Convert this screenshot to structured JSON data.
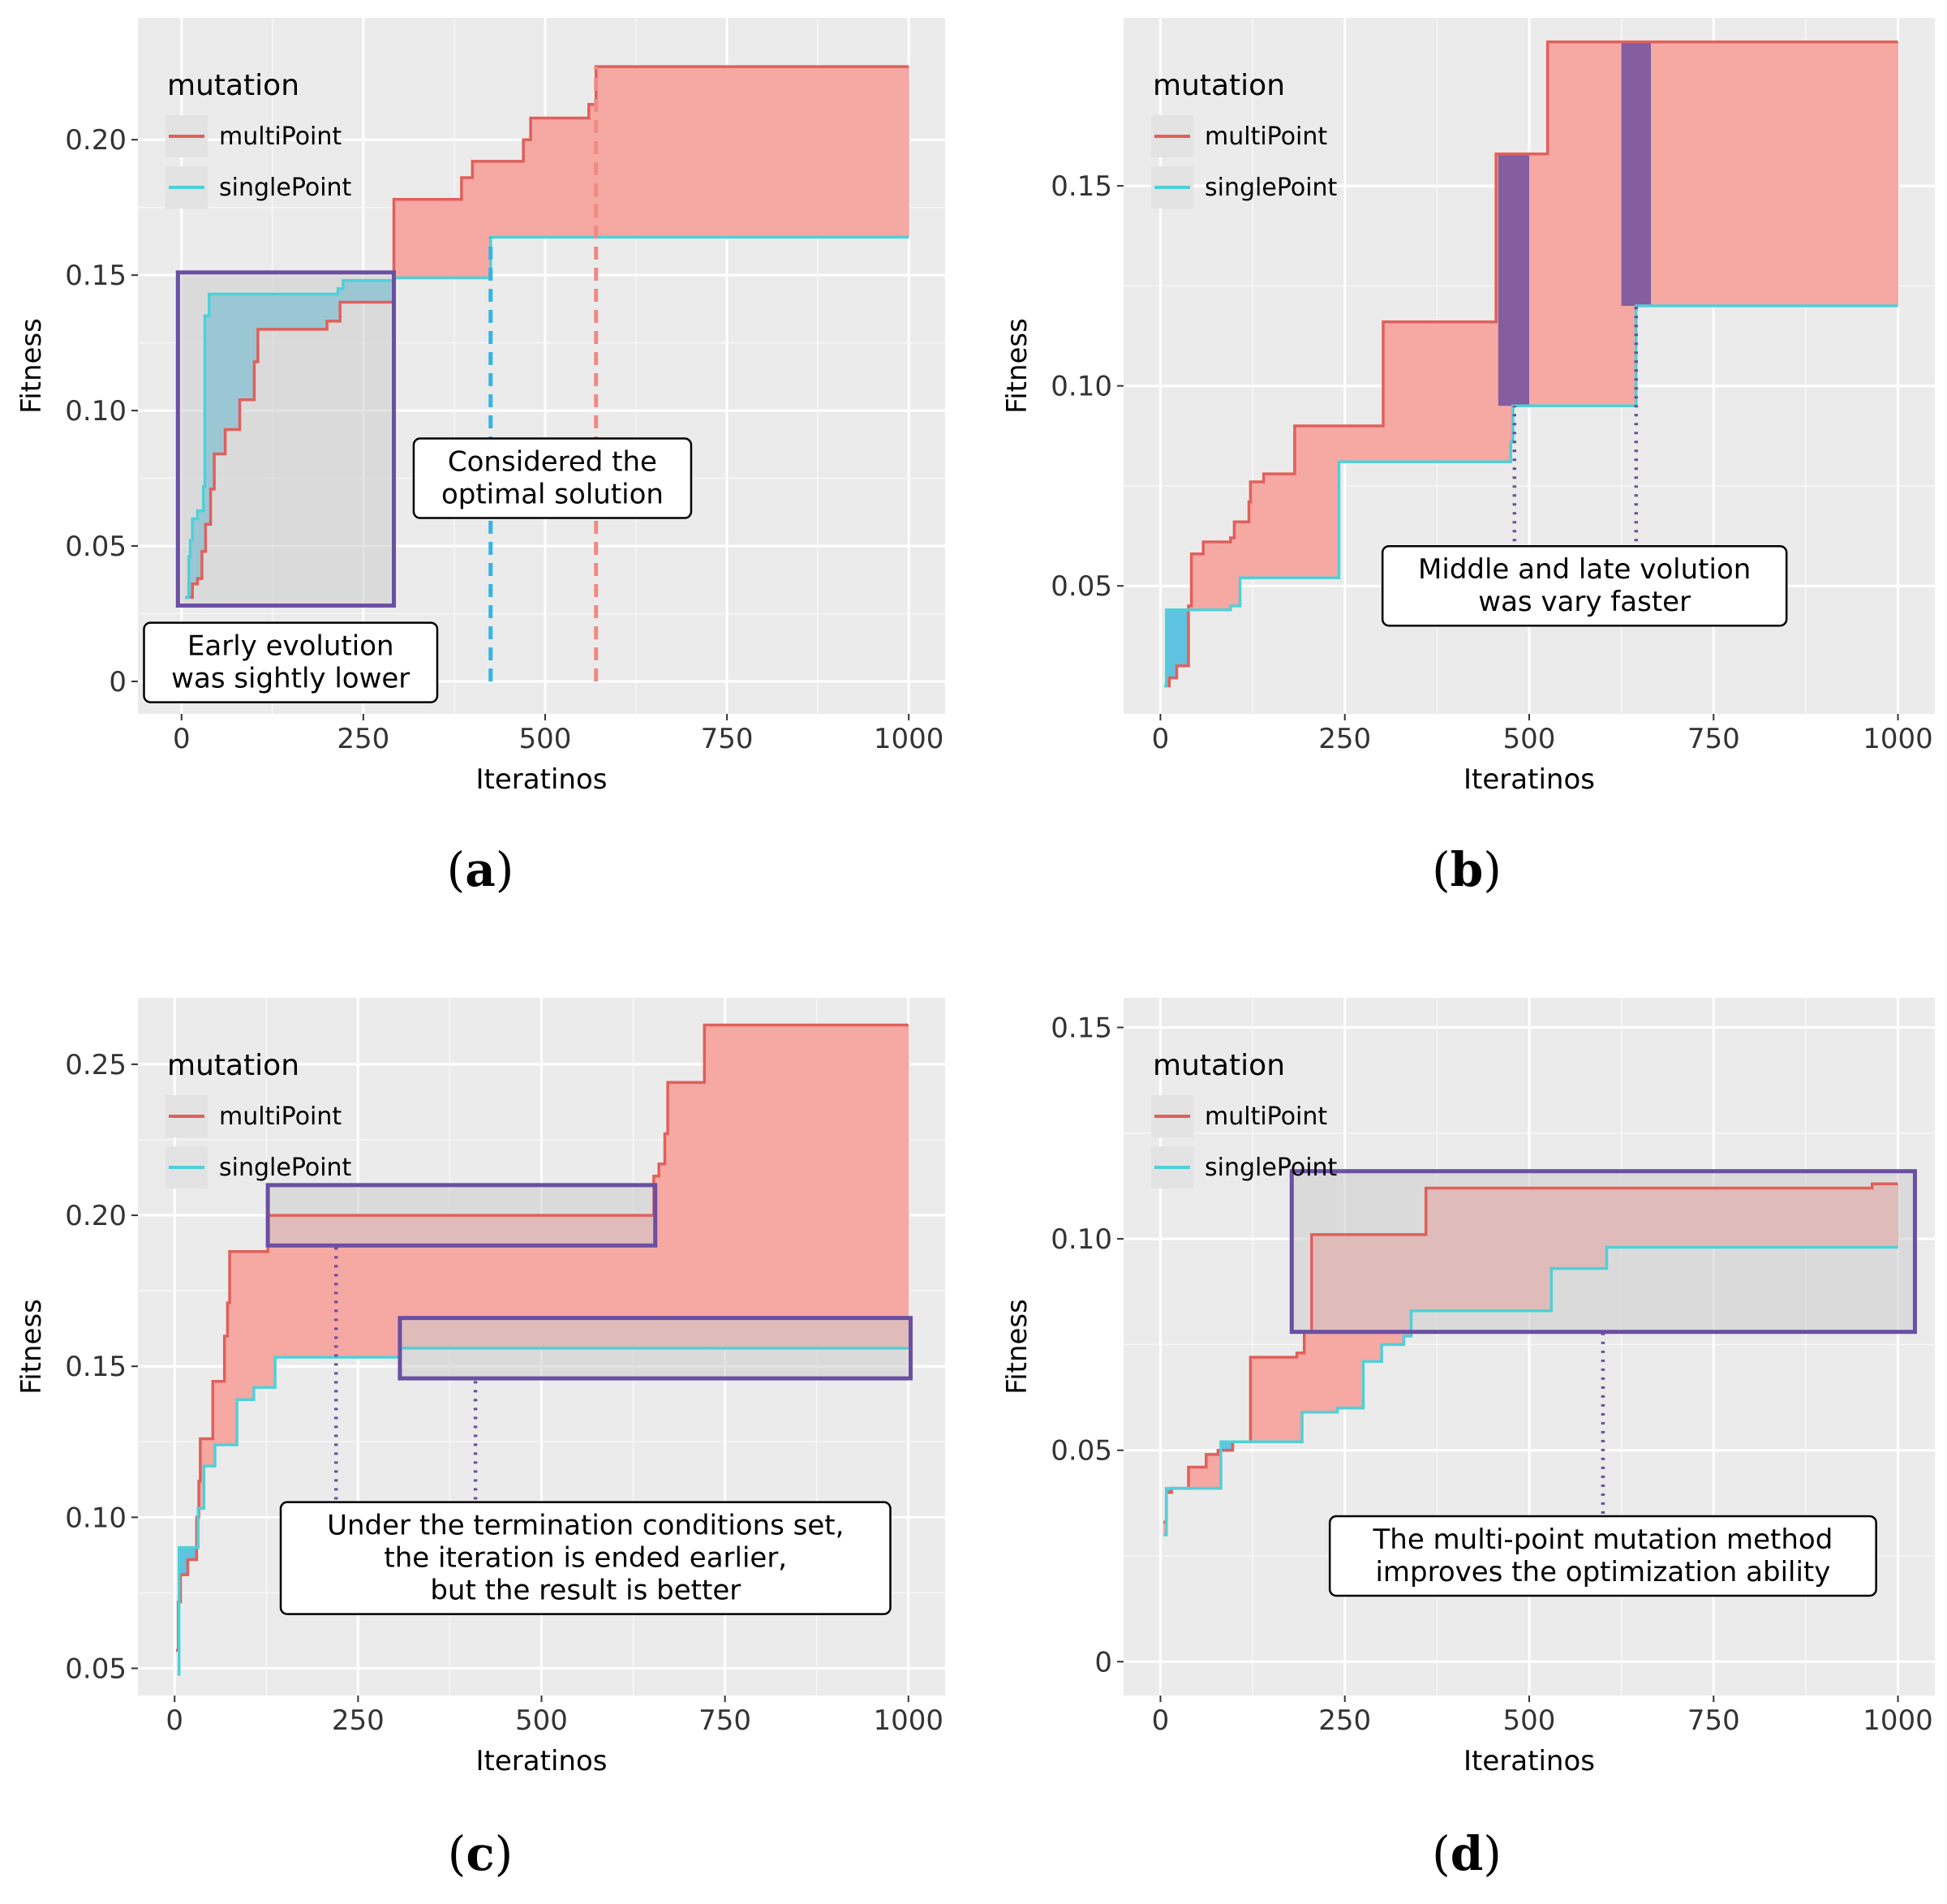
{
  "colors": {
    "multiPoint": "#e0605a",
    "singlePoint": "#4fd0d8",
    "ribbon_multi": "#f6a8a3",
    "ribbon_single": "#5fc2e0",
    "highlight": "#6a4fa2",
    "highlight_fill": "#7d5a9e",
    "panel_bg": "#ebebeb",
    "grid": "#ffffff",
    "box_fill": "#cccccc",
    "dash_single": "#35b3e6",
    "dash_multi": "#f08a83"
  },
  "chart_data": [
    {
      "type": "line",
      "id": "a",
      "panel_label": "(a)",
      "panel_label_parts": [
        "(",
        "a",
        ")"
      ],
      "xlabel": "Iteratinos",
      "ylabel": "Fitness",
      "xlim": [
        -60,
        1050
      ],
      "ylim": [
        -0.012,
        0.245
      ],
      "xticks": [
        0,
        250,
        500,
        750,
        1000
      ],
      "xtick_labels": [
        "0",
        "250",
        "500",
        "750",
        "1000"
      ],
      "yticks": [
        0,
        0.05,
        0.1,
        0.15,
        0.2
      ],
      "ytick_labels": [
        "0",
        "0.05",
        "0.10",
        "0.15",
        "0.20"
      ],
      "legend": {
        "title": "mutation",
        "entries": [
          "multiPoint",
          "singlePoint"
        ]
      },
      "series": [
        {
          "name": "multiPoint",
          "points": [
            [
              5,
              0.031
            ],
            [
              15,
              0.036
            ],
            [
              22,
              0.038
            ],
            [
              28,
              0.048
            ],
            [
              33,
              0.058
            ],
            [
              40,
              0.071
            ],
            [
              45,
              0.084
            ],
            [
              60,
              0.093
            ],
            [
              80,
              0.104
            ],
            [
              100,
              0.118
            ],
            [
              105,
              0.13
            ],
            [
              200,
              0.133
            ],
            [
              218,
              0.14
            ],
            [
              292,
              0.148
            ],
            [
              292,
              0.178
            ],
            [
              385,
              0.186
            ],
            [
              400,
              0.192
            ],
            [
              470,
              0.2
            ],
            [
              480,
              0.208
            ],
            [
              560,
              0.213
            ],
            [
              570,
              0.227
            ],
            [
              1000,
              0.227
            ]
          ]
        },
        {
          "name": "singlePoint",
          "points": [
            [
              5,
              0.031
            ],
            [
              10,
              0.046
            ],
            [
              12,
              0.052
            ],
            [
              15,
              0.06
            ],
            [
              22,
              0.063
            ],
            [
              30,
              0.072
            ],
            [
              32,
              0.135
            ],
            [
              38,
              0.143
            ],
            [
              215,
              0.145
            ],
            [
              222,
              0.148
            ],
            [
              292,
              0.149
            ],
            [
              420,
              0.149
            ],
            [
              425,
              0.164
            ],
            [
              1000,
              0.164
            ]
          ]
        }
      ],
      "boxes": [
        {
          "x0": -5,
          "x1": 292,
          "y0": 0.028,
          "y1": 0.151
        }
      ],
      "vlines": [
        {
          "x": 425,
          "y0": 0,
          "y1": 0.164,
          "series": "singlePoint",
          "style": "dashed"
        },
        {
          "x": 570,
          "y0": 0,
          "y1": 0.227,
          "series": "multiPoint",
          "style": "dashed"
        }
      ],
      "annotations": [
        {
          "lines": [
            "Early evolution",
            "was sightly lower"
          ],
          "x": 150,
          "y": 0.007
        },
        {
          "lines": [
            "Considered the",
            "optimal solution"
          ],
          "x": 510,
          "y": 0.075
        }
      ]
    },
    {
      "type": "line",
      "id": "b",
      "panel_label": "(b)",
      "panel_label_parts": [
        "(",
        "b",
        ")"
      ],
      "xlabel": "Iteratinos",
      "ylabel": "Fitness",
      "xlim": [
        -50,
        1050
      ],
      "ylim": [
        0.018,
        0.192
      ],
      "xticks": [
        0,
        250,
        500,
        750,
        1000
      ],
      "xtick_labels": [
        "0",
        "250",
        "500",
        "750",
        "1000"
      ],
      "yticks": [
        0.05,
        0.1,
        0.15
      ],
      "ytick_labels": [
        "0.05",
        "0.10",
        "0.15"
      ],
      "legend": {
        "title": "mutation",
        "entries": [
          "multiPoint",
          "singlePoint"
        ]
      },
      "series": [
        {
          "name": "multiPoint",
          "points": [
            [
              5,
              0.025
            ],
            [
              12,
              0.027
            ],
            [
              22,
              0.03
            ],
            [
              38,
              0.045
            ],
            [
              42,
              0.058
            ],
            [
              58,
              0.061
            ],
            [
              95,
              0.062
            ],
            [
              100,
              0.066
            ],
            [
              120,
              0.071
            ],
            [
              122,
              0.076
            ],
            [
              140,
              0.078
            ],
            [
              182,
              0.09
            ],
            [
              240,
              0.09
            ],
            [
              302,
              0.116
            ],
            [
              398,
              0.116
            ],
            [
              455,
              0.158
            ],
            [
              500,
              0.158
            ],
            [
              525,
              0.186
            ],
            [
              1000,
              0.186
            ]
          ]
        },
        {
          "name": "singlePoint",
          "points": [
            [
              5,
              0.025
            ],
            [
              8,
              0.044
            ],
            [
              35,
              0.044
            ],
            [
              95,
              0.045
            ],
            [
              108,
              0.052
            ],
            [
              240,
              0.052
            ],
            [
              242,
              0.081
            ],
            [
              470,
              0.081
            ],
            [
              475,
              0.086
            ],
            [
              478,
              0.095
            ],
            [
              640,
              0.095
            ],
            [
              645,
              0.12
            ],
            [
              1000,
              0.12
            ]
          ]
        }
      ],
      "highlight_bands": [
        {
          "x0": 458,
          "x1": 500,
          "y0": 0.095,
          "y1": 0.158
        },
        {
          "x0": 625,
          "x1": 665,
          "y0": 0.12,
          "y1": 0.186
        }
      ],
      "vlines": [
        {
          "x": 480,
          "y0": 0.05,
          "y1": 0.095,
          "series": "highlight",
          "style": "dotted"
        },
        {
          "x": 645,
          "y0": 0.05,
          "y1": 0.12,
          "series": "highlight",
          "style": "dotted"
        }
      ],
      "annotations": [
        {
          "lines": [
            "Middle and late volution",
            "was vary faster"
          ],
          "x": 575,
          "y": 0.05
        }
      ]
    },
    {
      "type": "line",
      "id": "c",
      "panel_label": "(c)",
      "panel_label_parts": [
        "(",
        "c",
        ")"
      ],
      "xlabel": "Iteratinos",
      "ylabel": "Fitness",
      "xlim": [
        -50,
        1050
      ],
      "ylim": [
        0.041,
        0.272
      ],
      "xticks": [
        0,
        250,
        500,
        750,
        1000
      ],
      "xtick_labels": [
        "0",
        "250",
        "500",
        "750",
        "1000"
      ],
      "yticks": [
        0.05,
        0.1,
        0.15,
        0.2,
        0.25
      ],
      "ytick_labels": [
        "0.05",
        "0.10",
        "0.15",
        "0.20",
        "0.25"
      ],
      "legend": {
        "title": "mutation",
        "entries": [
          "multiPoint",
          "singlePoint"
        ]
      },
      "series": [
        {
          "name": "multiPoint",
          "points": [
            [
              2,
              0.056
            ],
            [
              5,
              0.072
            ],
            [
              8,
              0.081
            ],
            [
              18,
              0.086
            ],
            [
              30,
              0.1
            ],
            [
              33,
              0.112
            ],
            [
              35,
              0.126
            ],
            [
              50,
              0.126
            ],
            [
              52,
              0.145
            ],
            [
              68,
              0.16
            ],
            [
              72,
              0.171
            ],
            [
              75,
              0.188
            ],
            [
              125,
              0.188
            ],
            [
              127,
              0.2
            ],
            [
              650,
              0.2
            ],
            [
              653,
              0.213
            ],
            [
              660,
              0.217
            ],
            [
              668,
              0.227
            ],
            [
              672,
              0.244
            ],
            [
              720,
              0.244
            ],
            [
              722,
              0.263
            ],
            [
              1000,
              0.263
            ]
          ]
        },
        {
          "name": "singlePoint",
          "points": [
            [
              4,
              0.048
            ],
            [
              6,
              0.09
            ],
            [
              30,
              0.09
            ],
            [
              32,
              0.103
            ],
            [
              40,
              0.117
            ],
            [
              55,
              0.124
            ],
            [
              82,
              0.124
            ],
            [
              85,
              0.139
            ],
            [
              105,
              0.139
            ],
            [
              108,
              0.143
            ],
            [
              135,
              0.143
            ],
            [
              137,
              0.153
            ],
            [
              305,
              0.153
            ],
            [
              307,
              0.156
            ],
            [
              1000,
              0.156
            ]
          ]
        }
      ],
      "boxes": [
        {
          "x0": 127,
          "x1": 655,
          "y0": 0.19,
          "y1": 0.21
        },
        {
          "x0": 307,
          "x1": 1003,
          "y0": 0.146,
          "y1": 0.166
        }
      ],
      "vlines": [
        {
          "x": 220,
          "y0": 0.1,
          "y1": 0.19,
          "series": "highlight",
          "style": "dotted"
        },
        {
          "x": 410,
          "y0": 0.1,
          "y1": 0.146,
          "series": "highlight",
          "style": "dotted"
        }
      ],
      "annotations": [
        {
          "lines": [
            "Under the termination conditions set,",
            "the iteration is ended earlier,",
            "but the result is better"
          ],
          "x": 560,
          "y": 0.0865
        }
      ]
    },
    {
      "type": "line",
      "id": "d",
      "panel_label": "(d)",
      "panel_label_parts": [
        "(",
        "d",
        ")"
      ],
      "xlabel": "Iteratinos",
      "ylabel": "Fitness",
      "xlim": [
        -50,
        1050
      ],
      "ylim": [
        -0.008,
        0.157
      ],
      "xticks": [
        0,
        250,
        500,
        750,
        1000
      ],
      "xtick_labels": [
        "0",
        "250",
        "500",
        "750",
        "1000"
      ],
      "yticks": [
        0,
        0.05,
        0.1,
        0.15
      ],
      "ytick_labels": [
        "0",
        "0.05",
        "0.10",
        "0.15"
      ],
      "legend": {
        "title": "mutation",
        "entries": [
          "multiPoint",
          "singlePoint"
        ]
      },
      "series": [
        {
          "name": "multiPoint",
          "points": [
            [
              4,
              0.033
            ],
            [
              8,
              0.04
            ],
            [
              15,
              0.041
            ],
            [
              35,
              0.041
            ],
            [
              38,
              0.046
            ],
            [
              60,
              0.046
            ],
            [
              62,
              0.049
            ],
            [
              75,
              0.049
            ],
            [
              78,
              0.05
            ],
            [
              95,
              0.05
            ],
            [
              98,
              0.052
            ],
            [
              115,
              0.052
            ],
            [
              122,
              0.072
            ],
            [
              175,
              0.072
            ],
            [
              185,
              0.073
            ],
            [
              195,
              0.078
            ],
            [
              205,
              0.101
            ],
            [
              352,
              0.101
            ],
            [
              360,
              0.112
            ],
            [
              960,
              0.112
            ],
            [
              965,
              0.113
            ],
            [
              1000,
              0.113
            ]
          ]
        },
        {
          "name": "singlePoint",
          "points": [
            [
              4,
              0.03
            ],
            [
              8,
              0.041
            ],
            [
              80,
              0.041
            ],
            [
              82,
              0.052
            ],
            [
              190,
              0.052
            ],
            [
              192,
              0.059
            ],
            [
              235,
              0.059
            ],
            [
              240,
              0.06
            ],
            [
              270,
              0.06
            ],
            [
              275,
              0.071
            ],
            [
              300,
              0.075
            ],
            [
              330,
              0.077
            ],
            [
              340,
              0.083
            ],
            [
              520,
              0.083
            ],
            [
              530,
              0.093
            ],
            [
              600,
              0.093
            ],
            [
              605,
              0.098
            ],
            [
              1000,
              0.098
            ]
          ]
        }
      ],
      "boxes": [
        {
          "x0": 178,
          "x1": 1023,
          "y0": 0.078,
          "y1": 0.116
        }
      ],
      "vlines": [
        {
          "x": 600,
          "y0": 0.035,
          "y1": 0.078,
          "series": "highlight",
          "style": "dotted"
        }
      ],
      "annotations": [
        {
          "lines": [
            "The multi-point mutation method",
            "improves the optimization ability"
          ],
          "x": 600,
          "y": 0.025
        }
      ]
    }
  ]
}
